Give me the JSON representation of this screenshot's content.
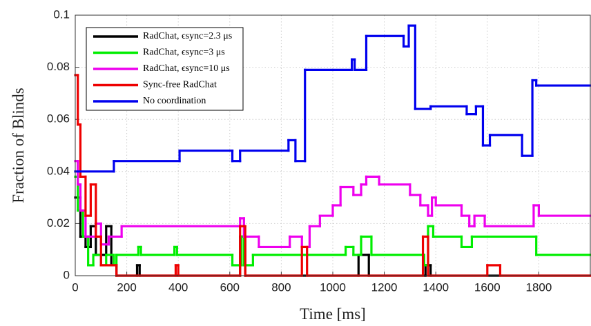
{
  "chart_data": {
    "type": "step-line",
    "xlabel": "Time [ms]",
    "ylabel": "Fraction of Blinds",
    "xlim": [
      0,
      2000
    ],
    "ylim": [
      0,
      0.1
    ],
    "xticks": [
      0,
      200,
      400,
      600,
      800,
      1000,
      1200,
      1400,
      1600,
      1800
    ],
    "yticks": [
      0,
      0.02,
      0.04,
      0.06,
      0.08,
      0.1
    ],
    "grid": true,
    "legend_position": "upper left",
    "series": [
      {
        "name": "RadChat, ϵsync=2.3 μs",
        "color": "#000000",
        "x": [
          0,
          20,
          40,
          60,
          80,
          120,
          140,
          160,
          240,
          250,
          640,
          660,
          1100,
          1140,
          1360,
          1380
        ],
        "values": [
          0.03,
          0.015,
          0.011,
          0.019,
          0.008,
          0.019,
          0.004,
          0,
          0.004,
          0,
          0.015,
          0,
          0.008,
          0,
          0.004,
          0
        ]
      },
      {
        "name": "RadChat, ϵsync=3 μs",
        "color": "#00ee00",
        "x": [
          0,
          10,
          30,
          50,
          70,
          100,
          120,
          150,
          160,
          245,
          255,
          385,
          395,
          610,
          645,
          655,
          690,
          1050,
          1080,
          1110,
          1150,
          1355,
          1370,
          1390,
          1500,
          1540,
          1790
        ],
        "values": [
          0.038,
          0.025,
          0.015,
          0.004,
          0.008,
          0.004,
          0.008,
          0.004,
          0.008,
          0.011,
          0.008,
          0.011,
          0.008,
          0.004,
          0.015,
          0.004,
          0.008,
          0.011,
          0.008,
          0.015,
          0.008,
          0.004,
          0.019,
          0.015,
          0.011,
          0.015,
          0.008
        ]
      },
      {
        "name": "RadChat, ϵsync=10 μs",
        "color": "#ee00ee",
        "x": [
          0,
          10,
          20,
          40,
          80,
          100,
          130,
          180,
          640,
          655,
          713,
          833,
          880,
          910,
          950,
          1000,
          1030,
          1080,
          1110,
          1130,
          1180,
          1300,
          1340,
          1370,
          1385,
          1400,
          1500,
          1530,
          1550,
          1590,
          1780,
          1800
        ],
        "values": [
          0.044,
          0.035,
          0.025,
          0.015,
          0.02,
          0.012,
          0.015,
          0.019,
          0.022,
          0.015,
          0.011,
          0.015,
          0.011,
          0.019,
          0.023,
          0.027,
          0.034,
          0.031,
          0.035,
          0.038,
          0.035,
          0.031,
          0.027,
          0.023,
          0.03,
          0.027,
          0.023,
          0.019,
          0.023,
          0.019,
          0.027,
          0.023
        ]
      },
      {
        "name": "Sync-free RadChat",
        "color": "#ee0000",
        "x": [
          0,
          10,
          20,
          40,
          60,
          80,
          100,
          160,
          390,
          400,
          640,
          660,
          880,
          900,
          1350,
          1370,
          1600,
          1650
        ],
        "values": [
          0.077,
          0.058,
          0.038,
          0.023,
          0.035,
          0.015,
          0.004,
          0,
          0.004,
          0,
          0.019,
          0,
          0.011,
          0,
          0.015,
          0,
          0.004,
          0
        ]
      },
      {
        "name": "No coordination",
        "color": "#0000ee",
        "x": [
          0,
          150,
          405,
          610,
          640,
          828,
          855,
          892,
          1074,
          1085,
          1130,
          1275,
          1295,
          1320,
          1380,
          1520,
          1556,
          1583,
          1610,
          1735,
          1775,
          1790
        ],
        "values": [
          0.04,
          0.044,
          0.048,
          0.044,
          0.048,
          0.052,
          0.044,
          0.079,
          0.083,
          0.079,
          0.092,
          0.088,
          0.096,
          0.064,
          0.065,
          0.062,
          0.065,
          0.05,
          0.054,
          0.046,
          0.075,
          0.073
        ]
      }
    ]
  }
}
